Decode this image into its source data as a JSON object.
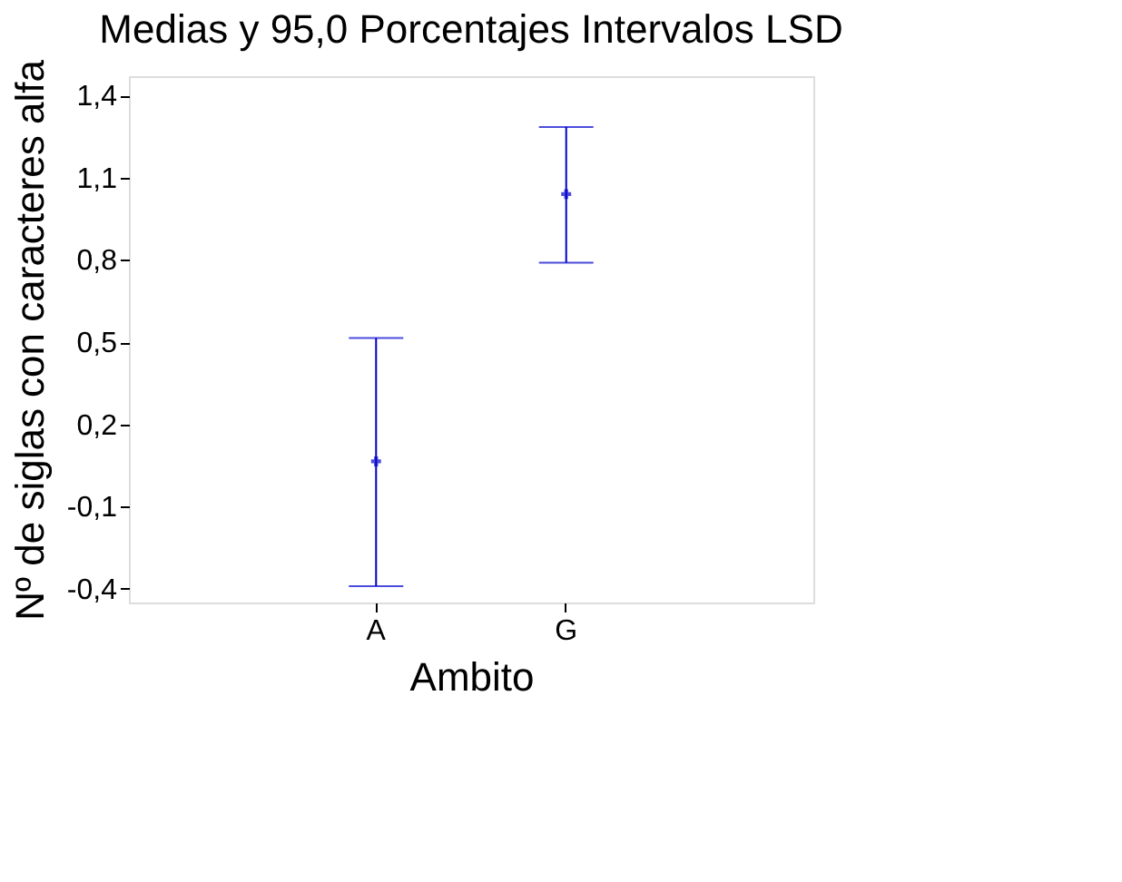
{
  "chart_data": {
    "type": "scatter",
    "title": "Medias y 95,0 Porcentajes Intervalos LSD",
    "xlabel": "Ambito",
    "ylabel": "Nº de siglas con caracteres alfa",
    "categories": [
      "A",
      "G"
    ],
    "series": [
      {
        "color": "#0000cc",
        "values": [
          0.065,
          1.04
        ],
        "errors": [
          [
            -0.39,
            0.515
          ],
          [
            0.79,
            1.285
          ]
        ]
      }
    ],
    "ylim": [
      -0.45,
      1.47
    ],
    "yticks": [
      {
        "value": -0.4,
        "label": "-0,4"
      },
      {
        "value": -0.1,
        "label": "-0,1"
      },
      {
        "value": 0.2,
        "label": "0,2"
      },
      {
        "value": 0.5,
        "label": "0,5"
      },
      {
        "value": 0.8,
        "label": "0,8"
      },
      {
        "value": 1.1,
        "label": "1,1"
      },
      {
        "value": 1.4,
        "label": "1,4"
      }
    ],
    "marker": "cross",
    "grid": false
  }
}
